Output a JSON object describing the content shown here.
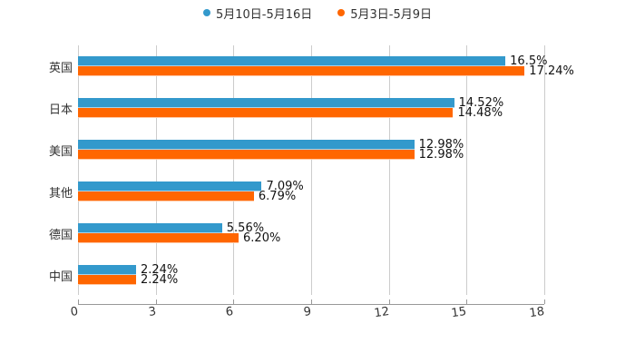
{
  "legend": [
    {
      "label": "5月10日-5月16日",
      "color": "#3399cc"
    },
    {
      "label": "5月3日-5月9日",
      "color": "#ff6600"
    }
  ],
  "axis": {
    "ticks": [
      "0",
      "3",
      "6",
      "9",
      "12",
      "15",
      "18"
    ]
  },
  "categories": [
    {
      "label": "英国",
      "blue": "16.5%",
      "orange": "17.24%"
    },
    {
      "label": "日本",
      "blue": "14.52%",
      "orange": "14.48%"
    },
    {
      "label": "美国",
      "blue": "12.98%",
      "orange": "12.98%"
    },
    {
      "label": "其他",
      "blue": "7.09%",
      "orange": "6.79%"
    },
    {
      "label": "德国",
      "blue": "5.56%",
      "orange": "6.20%"
    },
    {
      "label": "中国",
      "blue": "2.24%",
      "orange": "2.24%"
    }
  ],
  "chart_data": {
    "type": "bar",
    "orientation": "horizontal",
    "title": "",
    "xlabel": "",
    "ylabel": "",
    "xlim": [
      0,
      18
    ],
    "x_ticks": [
      0,
      3,
      6,
      9,
      12,
      15,
      18
    ],
    "grid": true,
    "legend_position": "top",
    "categories": [
      "英国",
      "日本",
      "美国",
      "其他",
      "德国",
      "中国"
    ],
    "series": [
      {
        "name": "5月10日-5月16日",
        "color": "#3399cc",
        "values": [
          16.5,
          14.52,
          12.98,
          7.09,
          5.56,
          2.24
        ]
      },
      {
        "name": "5月3日-5月9日",
        "color": "#ff6600",
        "values": [
          17.24,
          14.48,
          12.98,
          6.79,
          6.2,
          2.24
        ]
      }
    ],
    "data_labels": {
      "5月10日-5月16日": [
        "16.5%",
        "14.52%",
        "12.98%",
        "7.09%",
        "5.56%",
        "2.24%"
      ],
      "5月3日-5月9日": [
        "17.24%",
        "14.48%",
        "12.98%",
        "6.79%",
        "6.20%",
        "2.24%"
      ]
    }
  }
}
